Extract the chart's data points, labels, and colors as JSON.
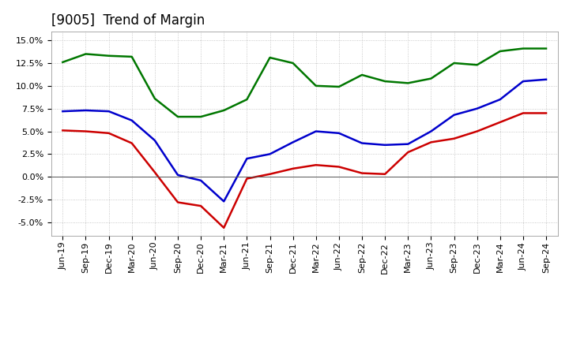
{
  "title": "[9005]  Trend of Margin",
  "x_labels": [
    "Jun-19",
    "Sep-19",
    "Dec-19",
    "Mar-20",
    "Jun-20",
    "Sep-20",
    "Dec-20",
    "Mar-21",
    "Jun-21",
    "Sep-21",
    "Dec-21",
    "Mar-22",
    "Jun-22",
    "Sep-22",
    "Dec-22",
    "Mar-23",
    "Jun-23",
    "Sep-23",
    "Dec-23",
    "Mar-24",
    "Jun-24",
    "Sep-24"
  ],
  "ordinary_income": [
    7.2,
    7.3,
    7.2,
    6.2,
    4.0,
    0.2,
    -0.4,
    -2.7,
    2.0,
    2.5,
    3.8,
    5.0,
    4.8,
    3.7,
    3.5,
    3.6,
    5.0,
    6.8,
    7.5,
    8.5,
    10.5,
    10.7
  ],
  "net_income": [
    5.1,
    5.0,
    4.8,
    3.7,
    0.5,
    -2.8,
    -3.2,
    -5.6,
    -0.2,
    0.3,
    0.9,
    1.3,
    1.1,
    0.4,
    0.3,
    2.7,
    3.8,
    4.2,
    5.0,
    6.0,
    7.0,
    7.0
  ],
  "operating_cashflow": [
    12.6,
    13.5,
    13.3,
    13.2,
    8.6,
    6.6,
    6.6,
    7.3,
    8.5,
    13.1,
    12.5,
    10.0,
    9.9,
    11.2,
    10.5,
    10.3,
    10.8,
    12.5,
    12.3,
    13.8,
    14.1,
    14.1
  ],
  "ylim": [
    -6.5,
    16.0
  ],
  "yticks": [
    -5.0,
    -2.5,
    0.0,
    2.5,
    5.0,
    7.5,
    10.0,
    12.5,
    15.0
  ],
  "line_colors": {
    "ordinary_income": "#0000CC",
    "net_income": "#CC0000",
    "operating_cashflow": "#007700"
  },
  "bg_color": "#FFFFFF",
  "grid_color": "#BBBBBB",
  "title_fontsize": 12,
  "tick_fontsize": 8,
  "legend_fontsize": 9
}
